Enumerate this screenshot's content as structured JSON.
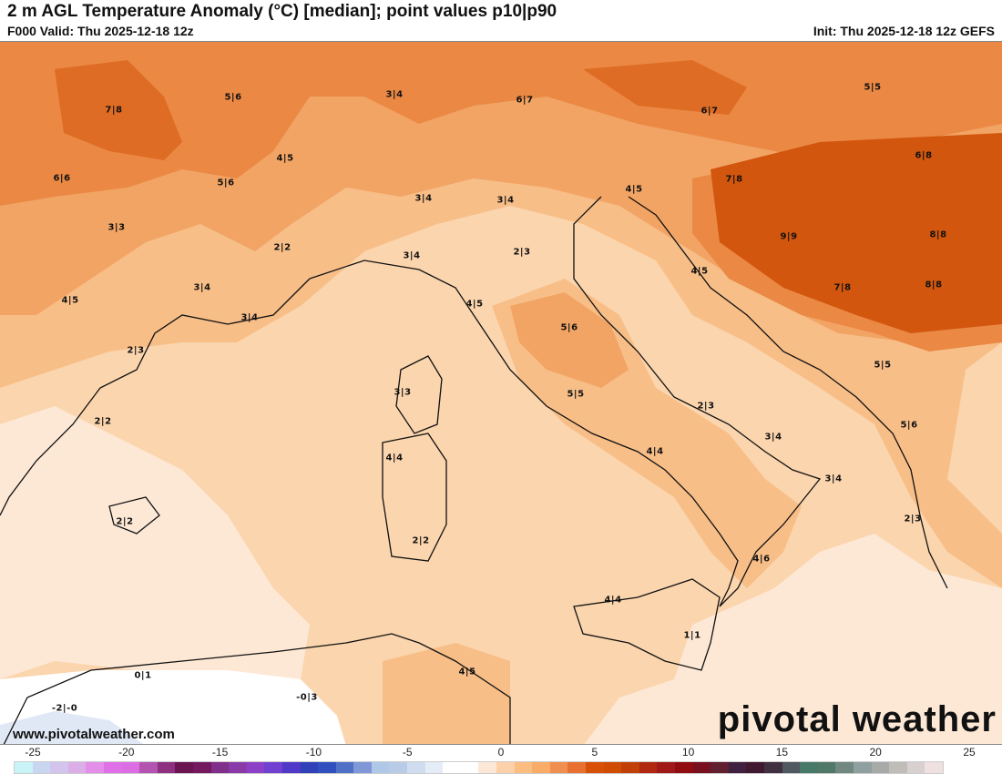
{
  "header": {
    "title": "2 m AGL Temperature Anomaly (°C) [median]; point values p10|p90",
    "valid": "F000 Valid: Thu 2025-12-18 12z",
    "init": "Init: Thu 2025-12-18 12z GEFS"
  },
  "map": {
    "point_values": [
      "7|8",
      "5|6",
      "3|4",
      "6|7",
      "6|7",
      "5|5",
      "6|8",
      "4|5",
      "5|6",
      "6|6",
      "3|4",
      "3|4",
      "4|5",
      "7|8",
      "3|3",
      "2|2",
      "9|9",
      "8|8",
      "2|3",
      "3|4",
      "3|4",
      "4|5",
      "7|8",
      "8|8",
      "4|5",
      "4|5",
      "3|4",
      "5|6",
      "2|3",
      "5|5",
      "3|3",
      "5|5",
      "2|3",
      "2|2",
      "5|6",
      "3|4",
      "4|4",
      "4|4",
      "3|4",
      "2|2",
      "2|3",
      "2|2",
      "4|6",
      "4|4",
      "1|1",
      "0|1",
      "4|5",
      "-2|-0",
      "-0|3"
    ],
    "colors": {
      "lightest": "#fde8d6",
      "light": "#fbd5ad",
      "medium": "#f8be88",
      "mid_dark": "#f2a464",
      "orange": "#ea8844",
      "dark": "#de6c24",
      "darkest": "#d2560e",
      "cool": "#dfe8f4",
      "sea_white": "#ffffff"
    }
  },
  "watermark": {
    "site": "www.pivotalweather.com",
    "logo": "pivotal weather"
  },
  "colorbar": {
    "ticks": [
      "-25",
      "-20",
      "-15",
      "-10",
      "-5",
      "0",
      "5",
      "10",
      "15",
      "20",
      "25"
    ],
    "colors": [
      "#c8f4f8",
      "#c9d6f2",
      "#d3c4ee",
      "#dcaee8",
      "#e38ee8",
      "#e070e8",
      "#dc6ee4",
      "#b354b0",
      "#8e3080",
      "#6a1550",
      "#741860",
      "#80308a",
      "#8a3aa8",
      "#8c40c8",
      "#7040d0",
      "#5038c8",
      "#3040b8",
      "#3050c0",
      "#5070c8",
      "#8098d8",
      "#b0c8e8",
      "#b8cce8",
      "#d0dcf0",
      "#e4ecf8",
      "#ffffff",
      "#ffffff",
      "#fde8d8",
      "#fcd0a8",
      "#fbbd80",
      "#f8ac68",
      "#f09050",
      "#e87030",
      "#d85008",
      "#d04c00",
      "#c04008",
      "#b02810",
      "#a01818",
      "#900c10",
      "#781020",
      "#602030",
      "#402040",
      "#401830",
      "#403040",
      "#505860",
      "#487868",
      "#507868",
      "#708880",
      "#90a0a0",
      "#a8aaa8",
      "#c0bcb8",
      "#d8d0d0",
      "#f0e0e0"
    ]
  }
}
